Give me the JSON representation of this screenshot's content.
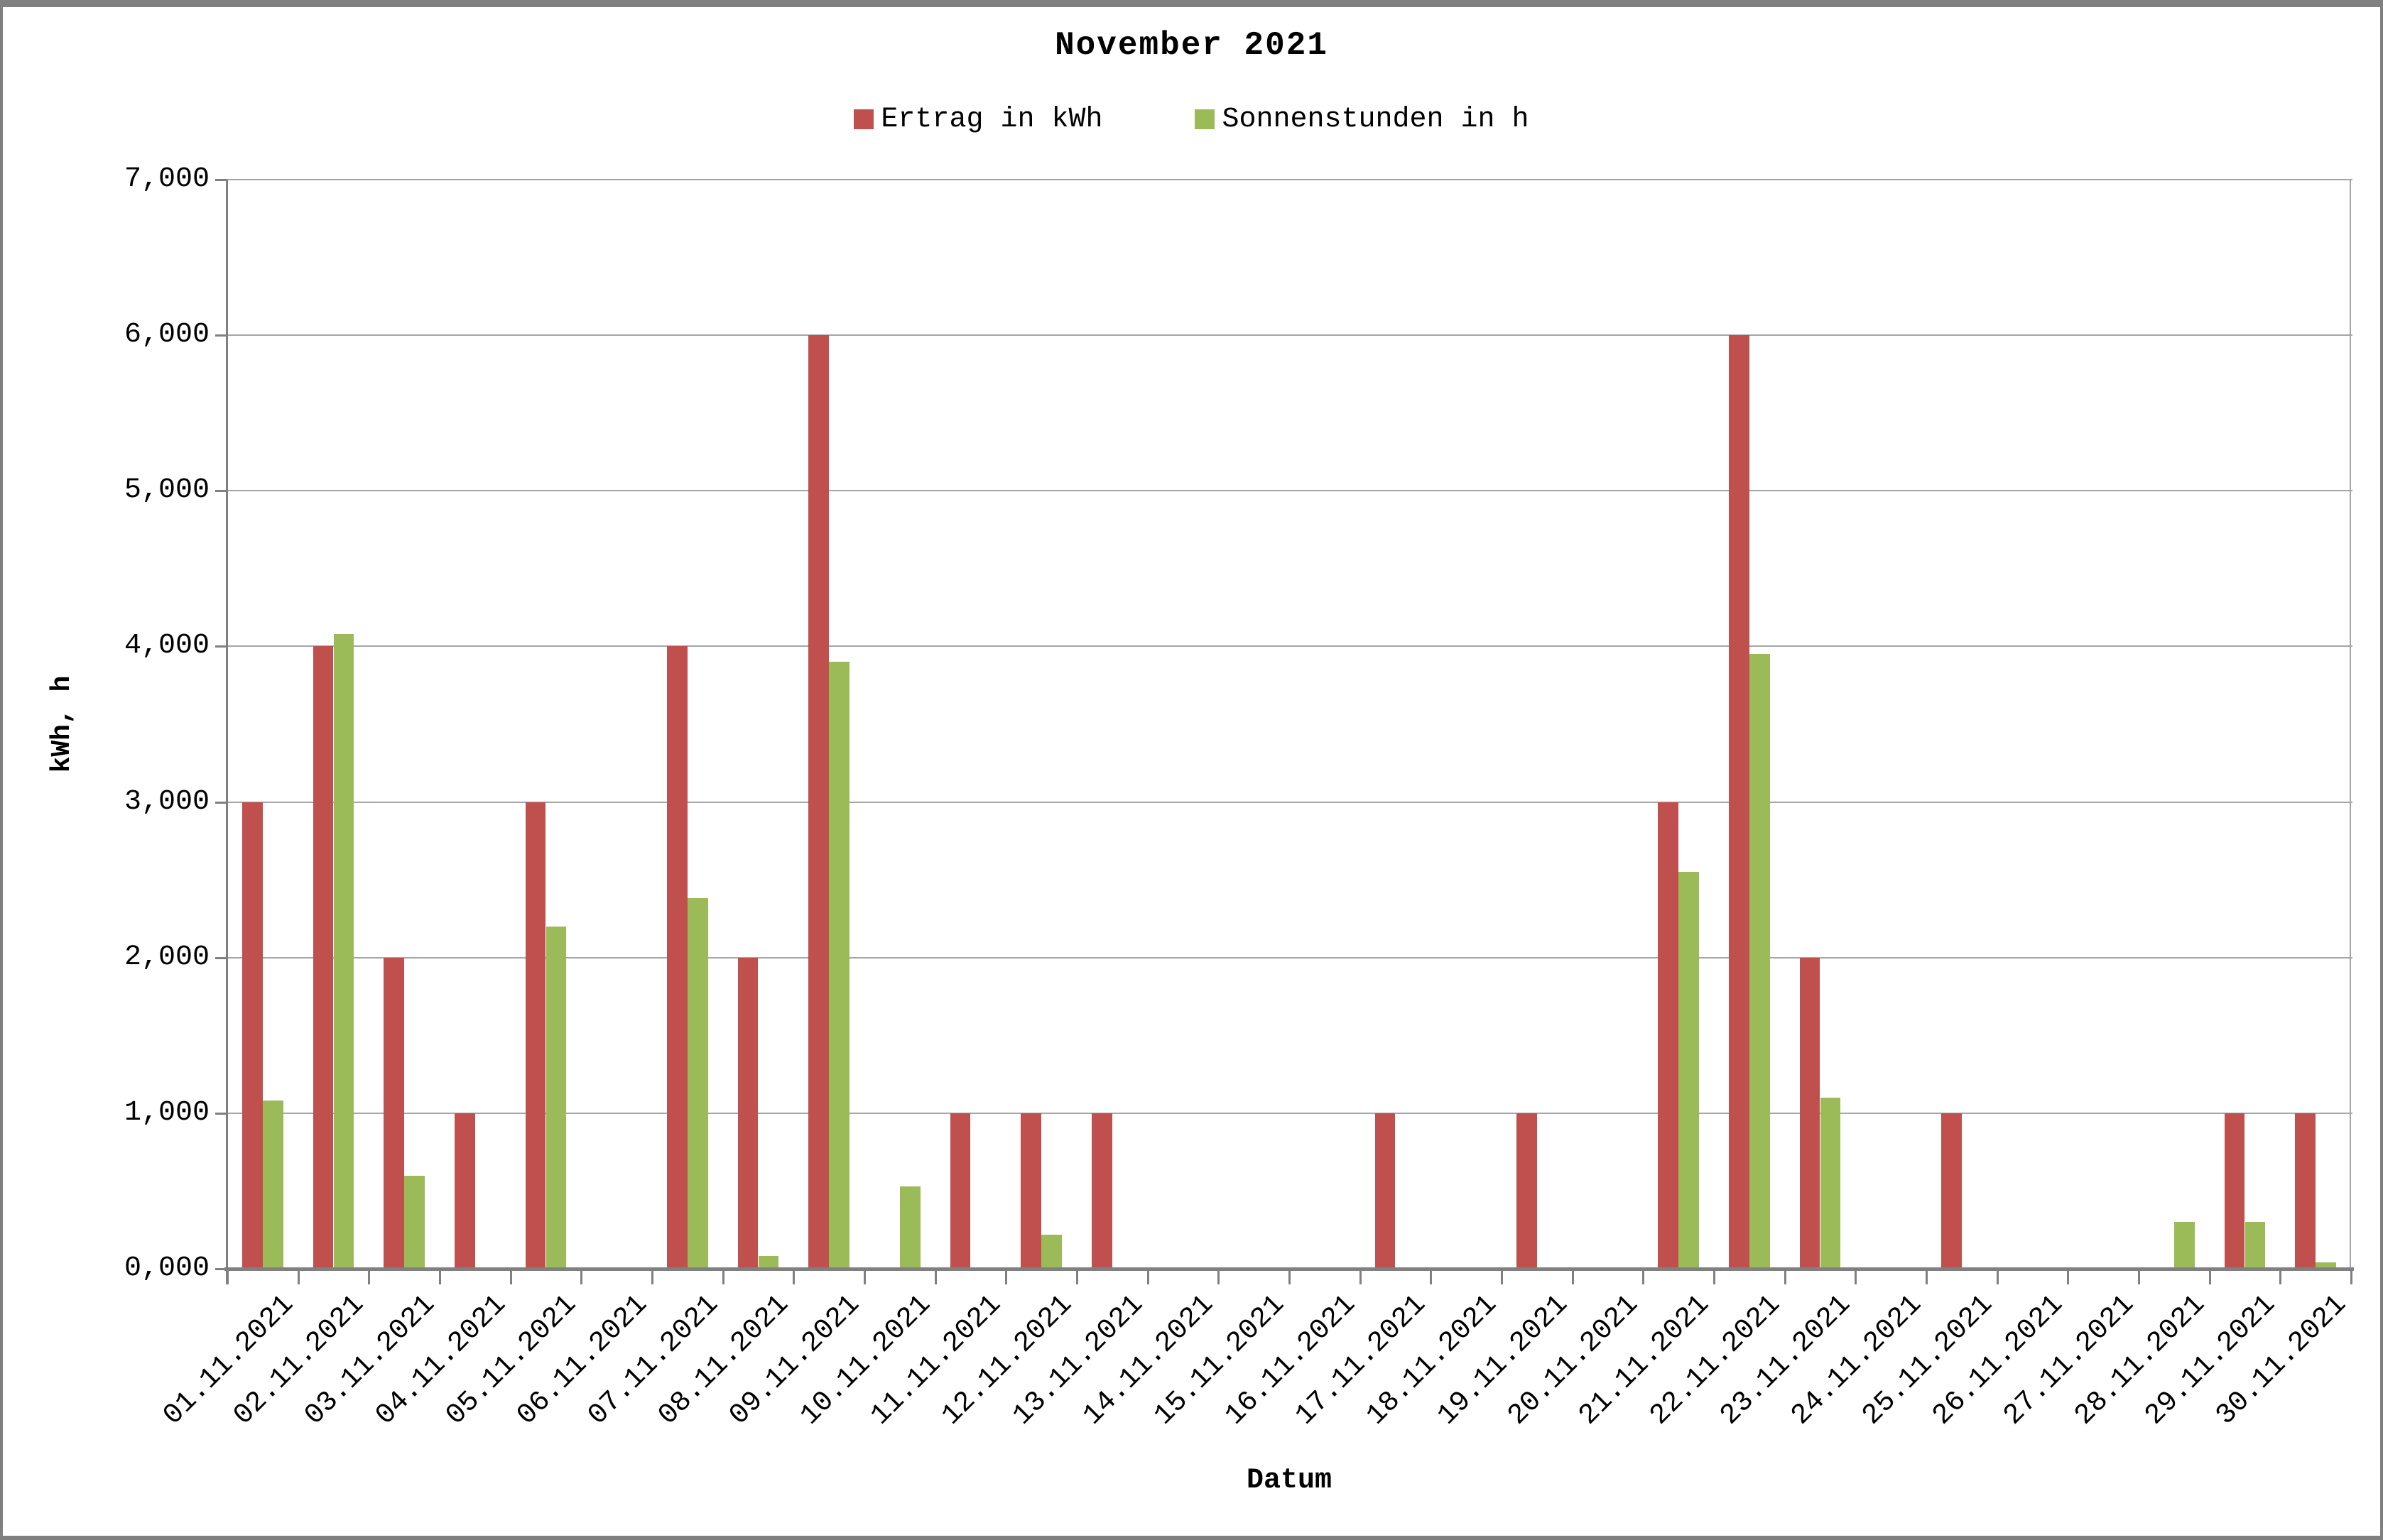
{
  "chart_data": {
    "type": "bar",
    "title": "November 2021",
    "xlabel": "Datum",
    "ylabel": "kWh, h",
    "legend_position": "top-center",
    "grid": true,
    "ylim": [
      0,
      7
    ],
    "y_ticks": [
      0,
      1,
      2,
      3,
      4,
      5,
      6,
      7
    ],
    "y_tick_labels": [
      "0,000",
      "1,000",
      "2,000",
      "3,000",
      "4,000",
      "5,000",
      "6,000",
      "7,000"
    ],
    "categories": [
      "01.11.2021",
      "02.11.2021",
      "03.11.2021",
      "04.11.2021",
      "05.11.2021",
      "06.11.2021",
      "07.11.2021",
      "08.11.2021",
      "09.11.2021",
      "10.11.2021",
      "11.11.2021",
      "12.11.2021",
      "13.11.2021",
      "14.11.2021",
      "15.11.2021",
      "16.11.2021",
      "17.11.2021",
      "18.11.2021",
      "19.11.2021",
      "20.11.2021",
      "21.11.2021",
      "22.11.2021",
      "23.11.2021",
      "24.11.2021",
      "25.11.2021",
      "26.11.2021",
      "27.11.2021",
      "28.11.2021",
      "29.11.2021",
      "30.11.2021"
    ],
    "series": [
      {
        "name": "Ertrag in kWh",
        "color": "#C0504D",
        "values": [
          3.0,
          4.0,
          2.0,
          1.0,
          3.0,
          0,
          4.0,
          2.0,
          6.0,
          0,
          1.0,
          1.0,
          1.0,
          0,
          0,
          0,
          1.0,
          0,
          1.0,
          0,
          3.0,
          6.0,
          2.0,
          0,
          1.0,
          0,
          0,
          0,
          1.0,
          1.0
        ]
      },
      {
        "name": "Sonnenstunden in h",
        "color": "#9BBB59",
        "values": [
          1.08,
          4.08,
          0.6,
          0,
          2.2,
          0,
          2.38,
          0.08,
          3.9,
          0.53,
          0,
          0.22,
          0,
          0,
          0,
          0,
          0,
          0,
          0,
          0,
          2.55,
          3.95,
          1.1,
          0,
          0,
          0,
          0,
          0.3,
          0.3,
          0.04
        ]
      }
    ]
  },
  "colors": {
    "axis": "#808080",
    "gridline": "#A6A6A6",
    "plot_right_border": "#A6A6A6",
    "background": "#FFFFFF",
    "frame_border": "#808080",
    "text": "#000000"
  }
}
